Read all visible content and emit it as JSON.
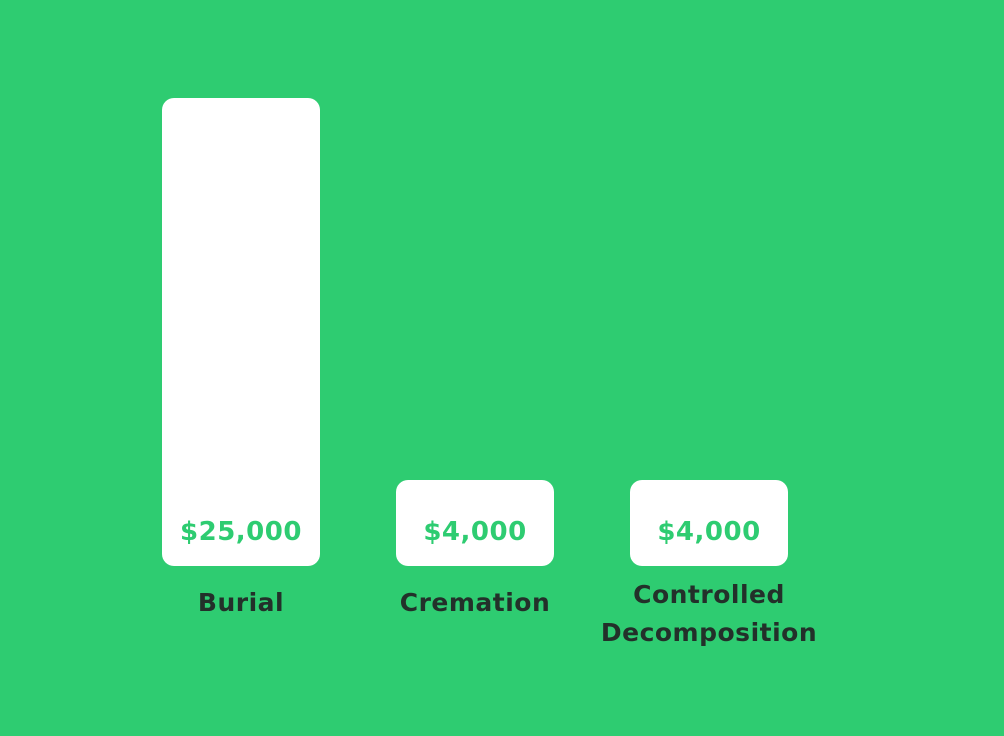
{
  "colors": {
    "background": "#2ECC71",
    "bar": "#FFFFFF",
    "value_text": "#2ECC71",
    "category_text": "#23302A"
  },
  "chart_data": {
    "type": "bar",
    "categories": [
      "Burial",
      "Cremation",
      "Controlled\nDecomposition"
    ],
    "values": [
      25000,
      4000,
      4000
    ],
    "value_labels": [
      "$25,000",
      "$4,000",
      "$4,000"
    ],
    "title": "",
    "xlabel": "",
    "ylabel": "",
    "ylim": [
      0,
      25000
    ],
    "grid": false,
    "legend": "none"
  }
}
